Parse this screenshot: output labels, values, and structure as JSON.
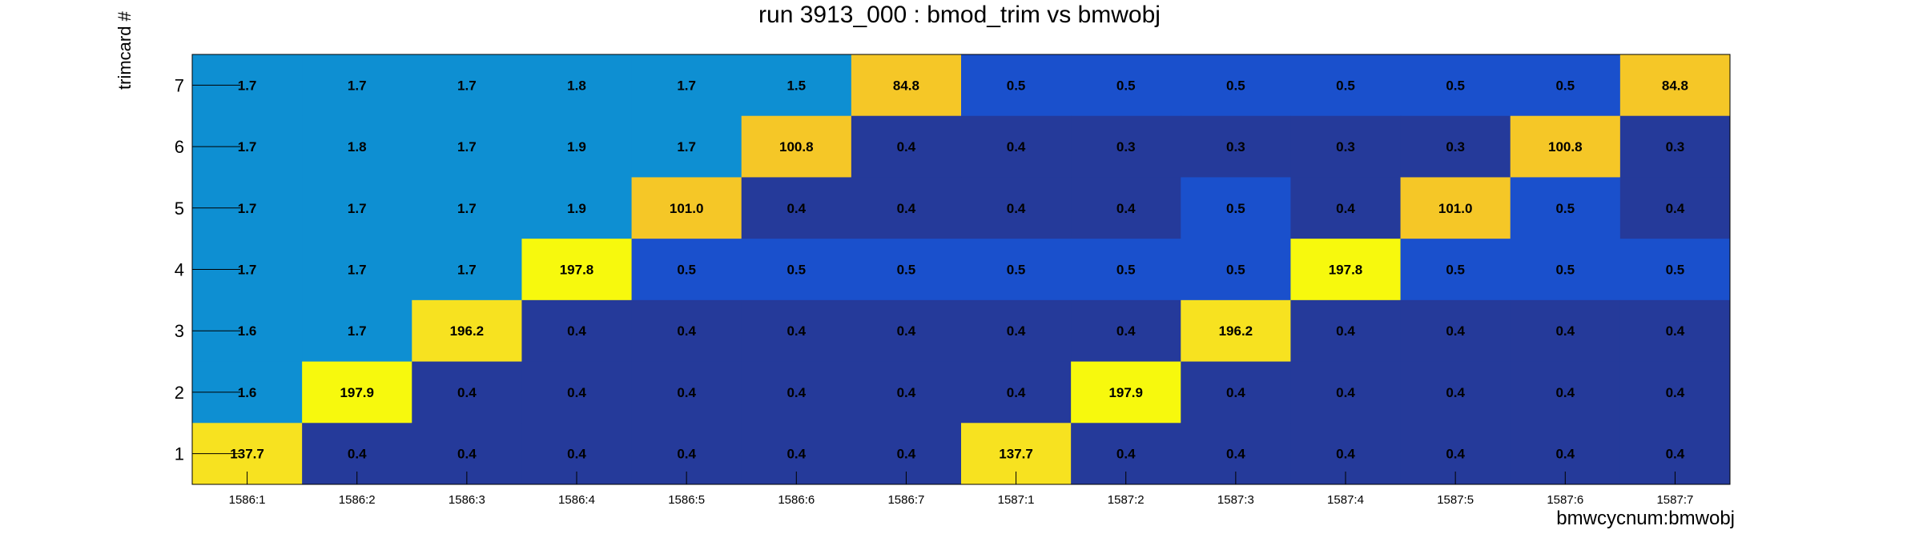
{
  "chart_data": {
    "type": "heatmap",
    "title": "run 3913_000 : bmod_trim vs bmwobj",
    "xlabel": "bmwcycnum:bmwobj",
    "ylabel": "trimcard #",
    "x_categories": [
      "1586:1",
      "1586:2",
      "1586:3",
      "1586:4",
      "1586:5",
      "1586:6",
      "1586:7",
      "1587:1",
      "1587:2",
      "1587:3",
      "1587:4",
      "1587:5",
      "1587:6",
      "1587:7"
    ],
    "y_categories": [
      "1",
      "2",
      "3",
      "4",
      "5",
      "6",
      "7"
    ],
    "rows": [
      {
        "trimcard": "7",
        "values": [
          1.7,
          1.7,
          1.7,
          1.8,
          1.7,
          1.5,
          84.8,
          0.5,
          0.5,
          0.5,
          0.5,
          0.5,
          0.5,
          84.8
        ]
      },
      {
        "trimcard": "6",
        "values": [
          1.7,
          1.8,
          1.7,
          1.9,
          1.7,
          100.8,
          0.4,
          0.4,
          0.3,
          0.3,
          0.3,
          0.3,
          100.8,
          0.3
        ]
      },
      {
        "trimcard": "5",
        "values": [
          1.7,
          1.7,
          1.7,
          1.9,
          101.0,
          0.4,
          0.4,
          0.4,
          0.4,
          0.5,
          0.4,
          101.0,
          0.5,
          0.4
        ]
      },
      {
        "trimcard": "4",
        "values": [
          1.7,
          1.7,
          1.7,
          197.8,
          0.5,
          0.5,
          0.5,
          0.5,
          0.5,
          0.5,
          197.8,
          0.5,
          0.5,
          0.5
        ]
      },
      {
        "trimcard": "3",
        "values": [
          1.6,
          1.7,
          196.2,
          0.4,
          0.4,
          0.4,
          0.4,
          0.4,
          0.4,
          196.2,
          0.4,
          0.4,
          0.4,
          0.4
        ]
      },
      {
        "trimcard": "2",
        "values": [
          1.6,
          197.9,
          0.4,
          0.4,
          0.4,
          0.4,
          0.4,
          0.4,
          197.9,
          0.4,
          0.4,
          0.4,
          0.4,
          0.4
        ]
      },
      {
        "trimcard": "1",
        "values": [
          137.7,
          0.4,
          0.4,
          0.4,
          0.4,
          0.4,
          0.4,
          137.7,
          0.4,
          0.4,
          0.4,
          0.4,
          0.4,
          0.4
        ]
      }
    ],
    "value_labels_format": "0.0",
    "colors": {
      "lowest": "#253a9a",
      "low": "#1a50cc",
      "low_mid": "#0e8fd2",
      "mid_high": "#f5c727",
      "high": "#f7e220",
      "highest": "#f7f90d"
    },
    "grid": false,
    "legend": "none"
  }
}
